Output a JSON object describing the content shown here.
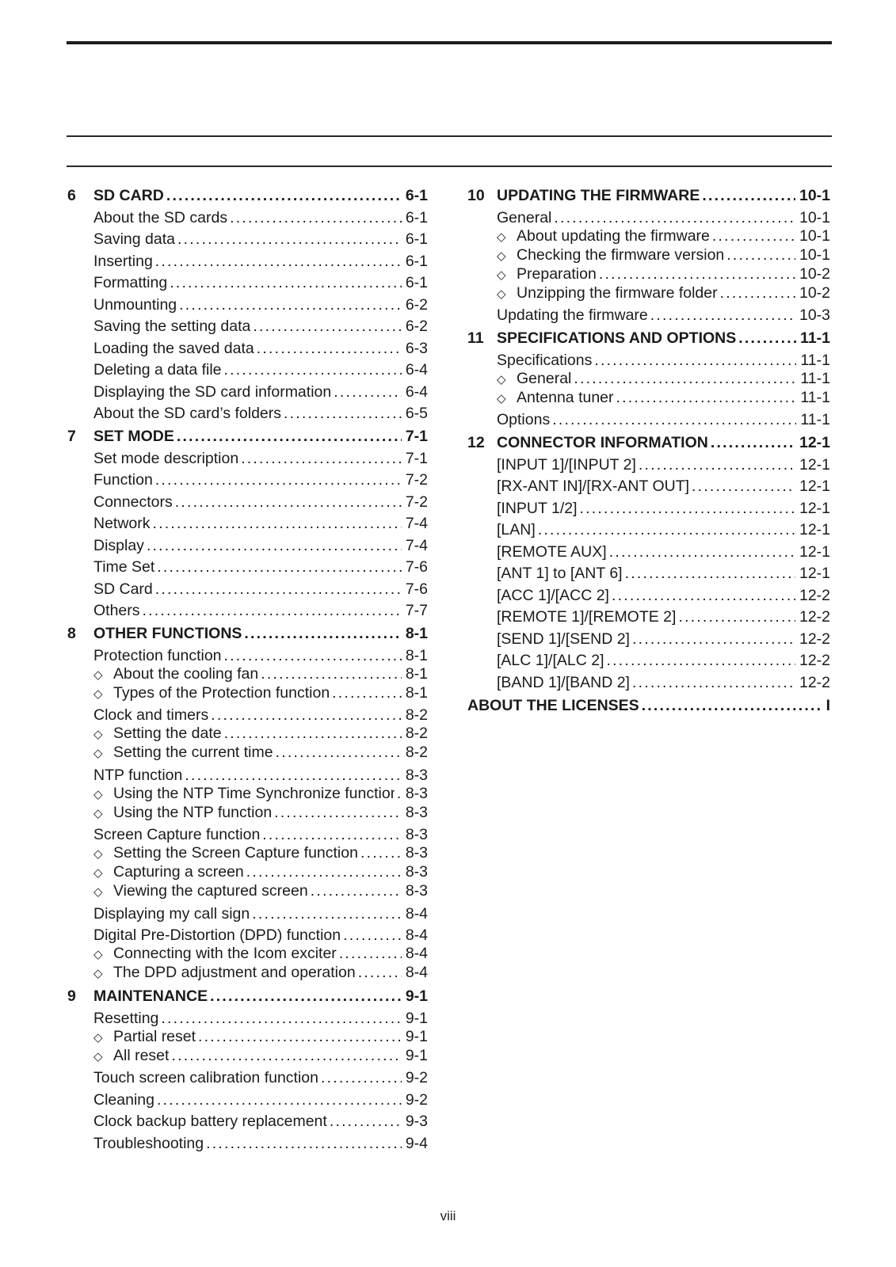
{
  "footer": {
    "page_number": "viii"
  },
  "toc": {
    "diamond_char": "◇",
    "columns": [
      {
        "sections": [
          {
            "number": "6",
            "title": "SD CARD",
            "page": "6-1",
            "items": [
              {
                "label": "About the SD cards",
                "page": "6-1",
                "sub": false
              },
              {
                "label": "Saving data",
                "page": "6-1",
                "sub": false
              },
              {
                "label": "Inserting",
                "page": "6-1",
                "sub": false
              },
              {
                "label": "Formatting",
                "page": "6-1",
                "sub": false
              },
              {
                "label": "Unmounting",
                "page": "6-2",
                "sub": false
              },
              {
                "label": "Saving the setting data",
                "page": "6-2",
                "sub": false
              },
              {
                "label": "Loading the saved data",
                "page": "6-3",
                "sub": false
              },
              {
                "label": "Deleting a data file",
                "page": "6-4",
                "sub": false
              },
              {
                "label": "Displaying the SD card information",
                "page": "6-4",
                "sub": false
              },
              {
                "label": "About the SD card’s folders",
                "page": "6-5",
                "sub": false
              }
            ]
          },
          {
            "number": "7",
            "title": "SET MODE",
            "page": "7-1",
            "items": [
              {
                "label": "Set mode description",
                "page": "7-1",
                "sub": false
              },
              {
                "label": "Function",
                "page": "7-2",
                "sub": false
              },
              {
                "label": "Connectors",
                "page": "7-2",
                "sub": false
              },
              {
                "label": "Network",
                "page": "7-4",
                "sub": false
              },
              {
                "label": "Display",
                "page": "7-4",
                "sub": false
              },
              {
                "label": "Time Set",
                "page": "7-6",
                "sub": false
              },
              {
                "label": "SD Card",
                "page": "7-6",
                "sub": false
              },
              {
                "label": "Others",
                "page": "7-7",
                "sub": false
              }
            ]
          },
          {
            "number": "8",
            "title": "OTHER FUNCTIONS",
            "page": "8-1",
            "items": [
              {
                "label": "Protection function",
                "page": "8-1",
                "sub": false
              },
              {
                "label": "About the cooling fan",
                "page": "8-1",
                "sub": true
              },
              {
                "label": "Types of the Protection function",
                "page": "8-1",
                "sub": true
              },
              {
                "label": "Clock and timers",
                "page": "8-2",
                "sub": false
              },
              {
                "label": "Setting the date",
                "page": "8-2",
                "sub": true
              },
              {
                "label": "Setting the current time",
                "page": "8-2",
                "sub": true
              },
              {
                "label": "NTP function",
                "page": "8-3",
                "sub": false
              },
              {
                "label": "Using the NTP Time Synchronize function",
                "page": "8-3",
                "sub": true
              },
              {
                "label": "Using the NTP function",
                "page": "8-3",
                "sub": true
              },
              {
                "label": "Screen Capture function",
                "page": "8-3",
                "sub": false
              },
              {
                "label": "Setting the Screen Capture function",
                "page": "8-3",
                "sub": true
              },
              {
                "label": "Capturing a screen",
                "page": "8-3",
                "sub": true
              },
              {
                "label": "Viewing the captured screen",
                "page": "8-3",
                "sub": true
              },
              {
                "label": "Displaying my call sign",
                "page": "8-4",
                "sub": false
              },
              {
                "label": "Digital Pre-Distortion (DPD) function",
                "page": "8-4",
                "sub": false
              },
              {
                "label": "Connecting with the Icom exciter",
                "page": "8-4",
                "sub": true
              },
              {
                "label": "The DPD adjustment and operation",
                "page": "8-4",
                "sub": true
              }
            ]
          },
          {
            "number": "9",
            "title": "MAINTENANCE",
            "page": "9-1",
            "items": [
              {
                "label": "Resetting",
                "page": "9-1",
                "sub": false
              },
              {
                "label": "Partial reset",
                "page": "9-1",
                "sub": true
              },
              {
                "label": "All reset",
                "page": "9-1",
                "sub": true
              },
              {
                "label": "Touch screen calibration function",
                "page": "9-2",
                "sub": false
              },
              {
                "label": "Cleaning",
                "page": "9-2",
                "sub": false
              },
              {
                "label": "Clock backup battery replacement",
                "page": "9-3",
                "sub": false
              },
              {
                "label": "Troubleshooting",
                "page": "9-4",
                "sub": false
              }
            ]
          }
        ]
      },
      {
        "sections": [
          {
            "number": "10",
            "title": "UPDATING THE FIRMWARE",
            "page": "10-1",
            "items": [
              {
                "label": "General",
                "page": "10-1",
                "sub": false
              },
              {
                "label": "About updating the firmware",
                "page": "10-1",
                "sub": true
              },
              {
                "label": "Checking the firmware version",
                "page": "10-1",
                "sub": true
              },
              {
                "label": "Preparation",
                "page": "10-2",
                "sub": true
              },
              {
                "label": "Unzipping the firmware folder",
                "page": "10-2",
                "sub": true
              },
              {
                "label": "Updating the firmware",
                "page": "10-3",
                "sub": false
              }
            ]
          },
          {
            "number": "11",
            "title": "SPECIFICATIONS AND OPTIONS",
            "page": "11-1",
            "items": [
              {
                "label": "Specifications",
                "page": "11-1",
                "sub": false
              },
              {
                "label": "General",
                "page": "11-1",
                "sub": true
              },
              {
                "label": "Antenna tuner",
                "page": "11-1",
                "sub": true
              },
              {
                "label": "Options",
                "page": "11-1",
                "sub": false
              }
            ]
          },
          {
            "number": "12",
            "title": "CONNECTOR INFORMATION",
            "page": "12-1",
            "items": [
              {
                "label": "[INPUT 1]/[INPUT 2]",
                "page": "12-1",
                "sub": false
              },
              {
                "label": "[RX-ANT IN]/[RX-ANT OUT]",
                "page": "12-1",
                "sub": false
              },
              {
                "label": "[INPUT 1/2]",
                "page": "12-1",
                "sub": false
              },
              {
                "label": "[LAN]",
                "page": "12-1",
                "sub": false
              },
              {
                "label": "[REMOTE AUX]",
                "page": "12-1",
                "sub": false
              },
              {
                "label": "[ANT 1] to [ANT 6]",
                "page": "12-1",
                "sub": false
              },
              {
                "label": "[ACC 1]/[ACC 2]",
                "page": "12-2",
                "sub": false
              },
              {
                "label": "[REMOTE 1]/[REMOTE 2]",
                "page": "12-2",
                "sub": false
              },
              {
                "label": "[SEND 1]/[SEND 2]",
                "page": "12-2",
                "sub": false
              },
              {
                "label": "[ALC 1]/[ALC 2]",
                "page": "12-2",
                "sub": false
              },
              {
                "label": "[BAND 1]/[BAND 2]",
                "page": "12-2",
                "sub": false
              }
            ]
          },
          {
            "number": "",
            "title": "ABOUT THE LICENSES",
            "page": "I",
            "items": []
          }
        ]
      }
    ]
  }
}
